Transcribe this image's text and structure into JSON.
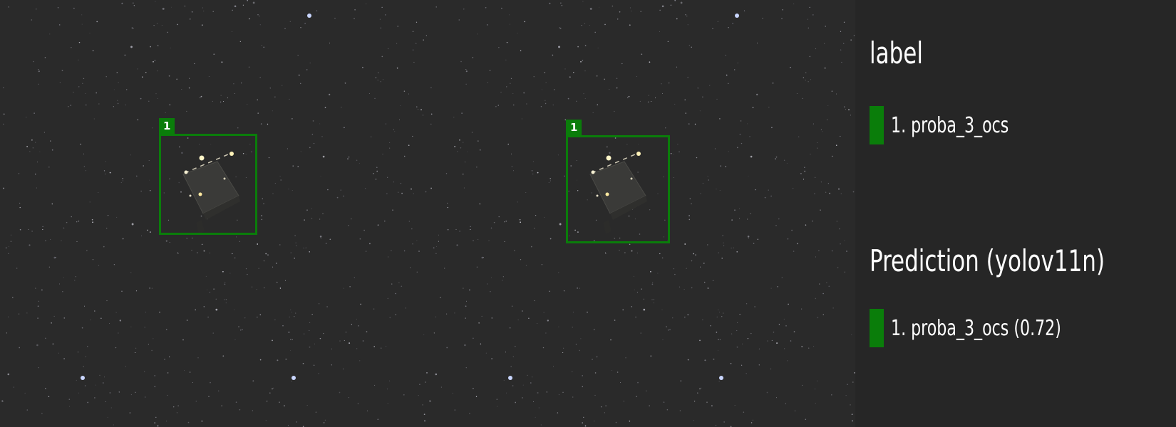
{
  "legend": {
    "label_heading": "label",
    "label_items": [
      {
        "text": "1. proba_3_ocs",
        "color": "#0a7d0a"
      }
    ],
    "prediction_heading": "Prediction (yolov11n)",
    "prediction_items": [
      {
        "text": "1. proba_3_ocs (0.72)",
        "color": "#0a7d0a"
      }
    ]
  },
  "label_pane": {
    "boxes": [
      {
        "tag": "1",
        "class": "proba_3_ocs",
        "color": "#0a7d0a"
      }
    ]
  },
  "prediction_pane": {
    "boxes": [
      {
        "tag": "1",
        "class": "proba_3_ocs",
        "confidence": 0.72,
        "color": "#0a7d0a"
      }
    ]
  }
}
